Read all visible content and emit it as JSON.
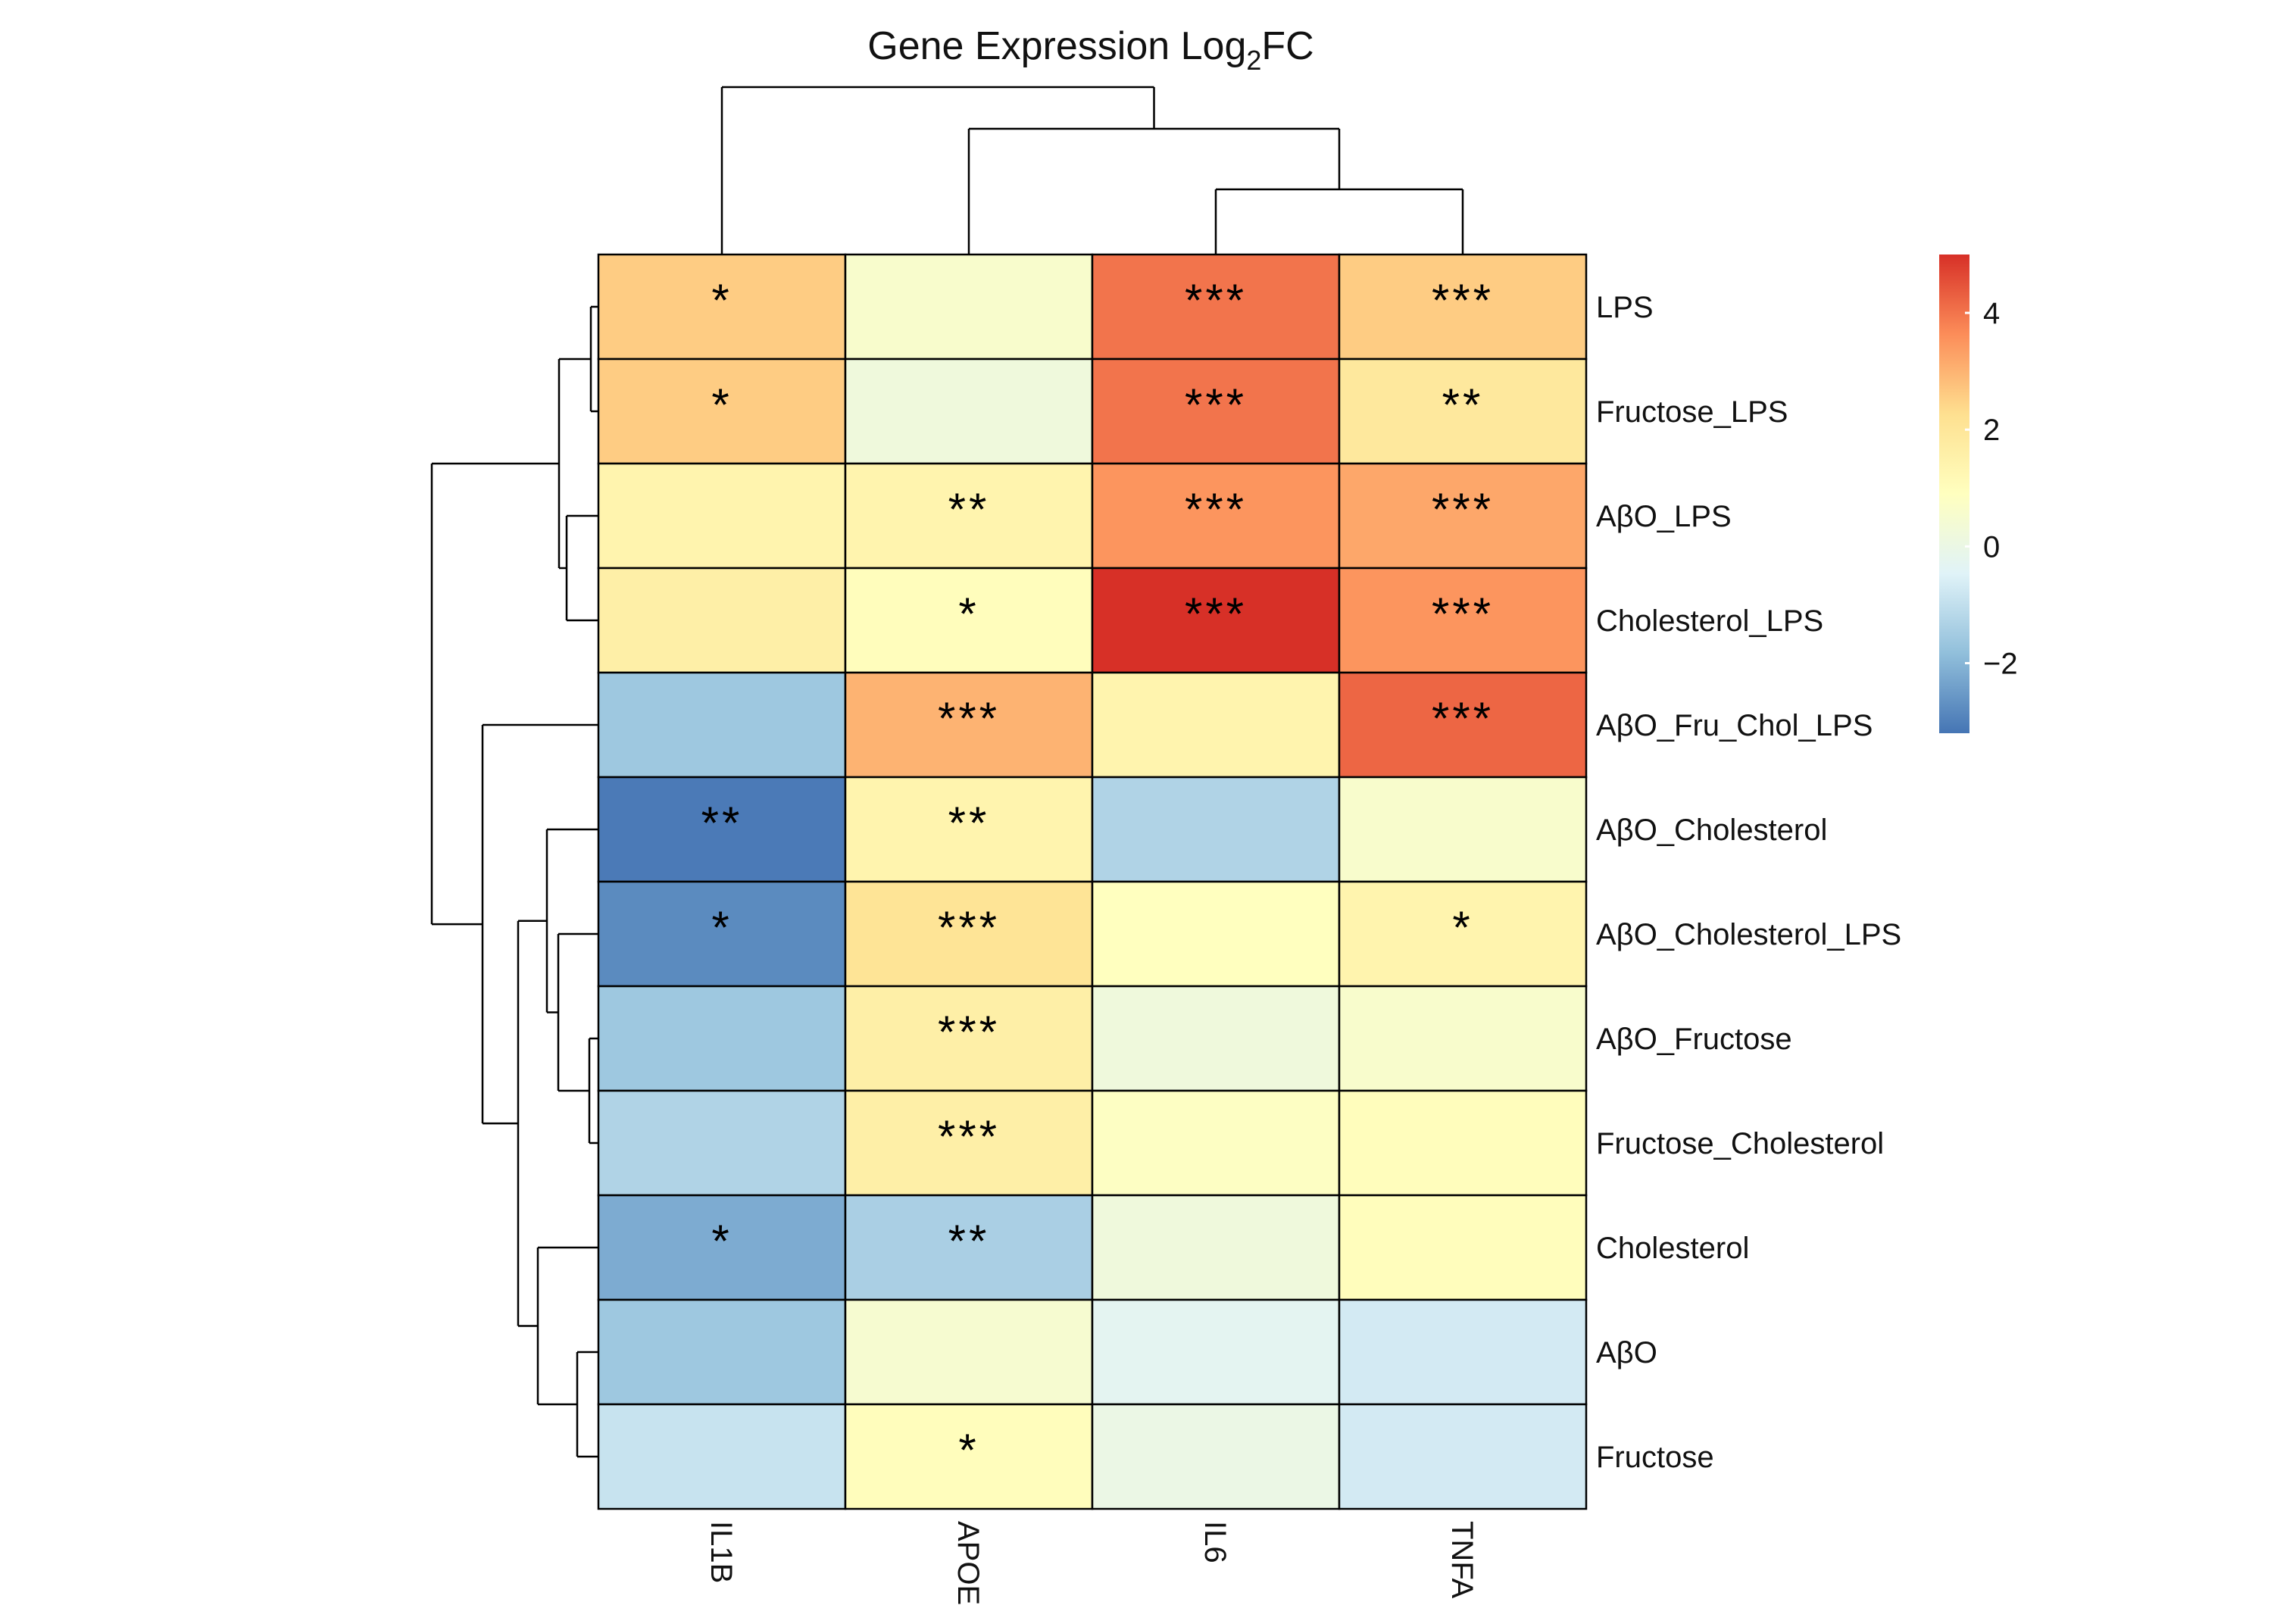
{
  "chart_data": {
    "type": "heatmap",
    "title_main": "Gene Expression Log",
    "title_sub": "2",
    "title_tail": "FC",
    "columns": [
      "IL1B",
      "APOE",
      "IL6",
      "TNFA"
    ],
    "rows": [
      "LPS",
      "Fructose_LPS",
      "AβO_LPS",
      "Cholesterol_LPS",
      "AβO_Fru_Chol_LPS",
      "AβO_Cholesterol",
      "AβO_Cholesterol_LPS",
      "AβO_Fructose",
      "Fructose_Cholesterol",
      "Cholesterol",
      "AβO",
      "Fructose"
    ],
    "values": [
      [
        2.6,
        0.6,
        4.0,
        2.6
      ],
      [
        2.6,
        0.2,
        4.0,
        1.9
      ],
      [
        1.4,
        1.4,
        3.5,
        3.2
      ],
      [
        1.6,
        1.0,
        5.0,
        3.5
      ],
      [
        -1.6,
        3.0,
        1.4,
        4.2
      ],
      [
        -3.1,
        1.4,
        -1.3,
        0.6
      ],
      [
        -2.8,
        2.1,
        0.9,
        1.4
      ],
      [
        -1.6,
        1.6,
        0.2,
        0.6
      ],
      [
        -1.3,
        1.6,
        0.8,
        1.0
      ],
      [
        -2.2,
        -1.4,
        0.2,
        1.0
      ],
      [
        -1.6,
        0.5,
        -0.3,
        -0.7
      ],
      [
        -0.9,
        1.0,
        0.0,
        -0.7
      ]
    ],
    "significance": [
      [
        "*",
        "",
        "***",
        "***"
      ],
      [
        "*",
        "",
        "***",
        "**"
      ],
      [
        "",
        "**",
        "***",
        "***"
      ],
      [
        "",
        "*",
        "***",
        "***"
      ],
      [
        "",
        "***",
        "",
        "***"
      ],
      [
        "**",
        "**",
        "",
        ""
      ],
      [
        "*",
        "***",
        "",
        "*"
      ],
      [
        "",
        "***",
        "",
        ""
      ],
      [
        "",
        "***",
        "",
        ""
      ],
      [
        "*",
        "**",
        "",
        ""
      ],
      [
        "",
        "",
        "",
        ""
      ],
      [
        "",
        "*",
        "",
        ""
      ]
    ],
    "colorbar": {
      "min": -3.2,
      "max": 5.0,
      "ticks": [
        {
          "value": 4,
          "label": "4"
        },
        {
          "value": 2,
          "label": "2"
        },
        {
          "value": 0,
          "label": "0"
        },
        {
          "value": -2,
          "label": "−2"
        }
      ],
      "colors": [
        "#4575b4",
        "#91bfdb",
        "#e0f3f8",
        "#ffffbf",
        "#fee090",
        "#fc8d59",
        "#d73027"
      ]
    },
    "column_dendrogram": "((IL1B),(APOE,(IL6,TNFA)))",
    "row_dendrogram": "(((LPS,Fructose_LPS),(AβO_LPS,Cholesterol_LPS)),(AβO_Fru_Chol_LPS,((AβO_Cholesterol,(AβO_Cholesterol_LPS,(AβO_Fructose,Fructose_Cholesterol))),(Cholesterol,(AβO,Fructose)))))"
  }
}
